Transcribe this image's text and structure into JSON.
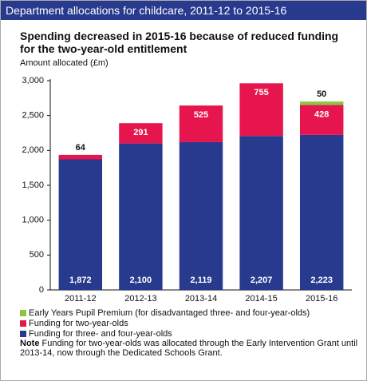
{
  "chart_data": {
    "type": "stacked_bar",
    "header": "Department allocations for childcare, 2011-12 to 2015-16",
    "title": "Spending decreased in 2015-16 because of reduced funding for the two-year-old entitlement",
    "y_label": "Amount allocated (£m)",
    "categories": [
      "2011-12",
      "2012-13",
      "2013-14",
      "2014-15",
      "2015-16"
    ],
    "series": [
      {
        "name": "Funding for three- and four-year-olds",
        "color": "#283a8e",
        "values": [
          1872,
          2100,
          2119,
          2207,
          2223
        ],
        "value_labels": [
          "1,872",
          "2,100",
          "2,119",
          "2,207",
          "2,223"
        ]
      },
      {
        "name": "Funding for two-year-olds",
        "color": "#e6154d",
        "values": [
          64,
          291,
          525,
          755,
          428
        ]
      },
      {
        "name": "Early Years Pupil Premium (for disadvantaged three- and four-year-olds)",
        "color": "#8cc63e",
        "values": [
          null,
          null,
          null,
          null,
          50
        ]
      }
    ],
    "ylim": [
      0,
      3000
    ],
    "yticks": [
      0,
      500,
      {
        "value": 1000,
        "label": "1,000"
      },
      {
        "value": 1500,
        "label": "1,500"
      },
      {
        "value": 2000,
        "label": "2,000"
      },
      {
        "value": 2500,
        "label": "2,500"
      },
      {
        "value": 3000,
        "label": "3,000"
      }
    ],
    "grid": false,
    "note_label": "Note",
    "note": "Funding for two-year-olds was allocated through the Early Intervention Grant until 2013-14, now through the Dedicated Schools Grant."
  }
}
